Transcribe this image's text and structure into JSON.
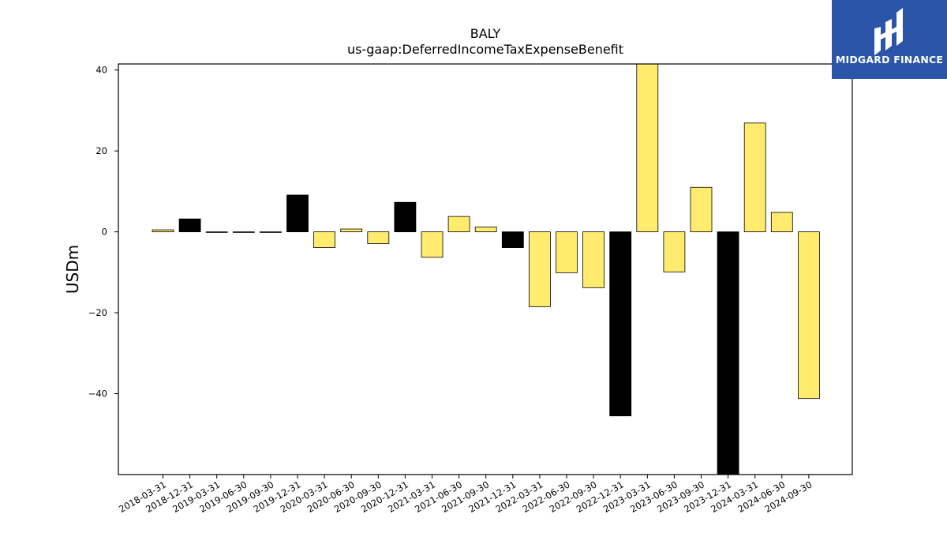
{
  "brand": {
    "name": "MIDGARD FINANCE",
    "bg_color": "#2a55a8",
    "icon": "midgard-logo-icon"
  },
  "chart_data": {
    "type": "bar",
    "title": "BALY",
    "subtitle": "us-gaap:DeferredIncomeTaxExpenseBenefit",
    "xlabel": "",
    "ylabel": "USDm",
    "ylim": [
      -60,
      41.5
    ],
    "yticks": [
      40,
      20,
      0,
      -20,
      -40
    ],
    "ytick_labels": [
      "40",
      "20",
      "0",
      "−20",
      "−40"
    ],
    "grid": false,
    "legend": "none",
    "colors": {
      "quarterly": "#ffec6e",
      "annual": "#000000",
      "edge": "#000000"
    },
    "categories": [
      "2018-03-31",
      "2018-12-31",
      "2019-03-31",
      "2019-06-30",
      "2019-09-30",
      "2019-12-31",
      "2020-03-31",
      "2020-06-30",
      "2020-09-30",
      "2020-12-31",
      "2021-03-31",
      "2021-06-30",
      "2021-09-30",
      "2021-12-31",
      "2022-03-31",
      "2022-06-30",
      "2022-09-30",
      "2022-12-31",
      "2023-03-31",
      "2023-06-30",
      "2023-09-30",
      "2023-12-31",
      "2024-03-31",
      "2024-06-30",
      "2024-09-30"
    ],
    "values": [
      0.5,
      3.2,
      0.0,
      0.0,
      0.0,
      9.1,
      -3.9,
      0.7,
      -2.9,
      7.3,
      -6.3,
      3.8,
      1.2,
      -3.9,
      -18.5,
      -10.1,
      -13.8,
      -45.5,
      42.5,
      -9.9,
      11.0,
      -60.0,
      26.9,
      4.8,
      -41.2
    ],
    "bar_kinds": [
      "quarterly",
      "annual",
      "annual",
      "annual",
      "annual",
      "annual",
      "quarterly",
      "quarterly",
      "quarterly",
      "annual",
      "quarterly",
      "quarterly",
      "quarterly",
      "annual",
      "quarterly",
      "quarterly",
      "quarterly",
      "annual",
      "quarterly",
      "quarterly",
      "quarterly",
      "annual",
      "quarterly",
      "quarterly",
      "quarterly"
    ]
  }
}
